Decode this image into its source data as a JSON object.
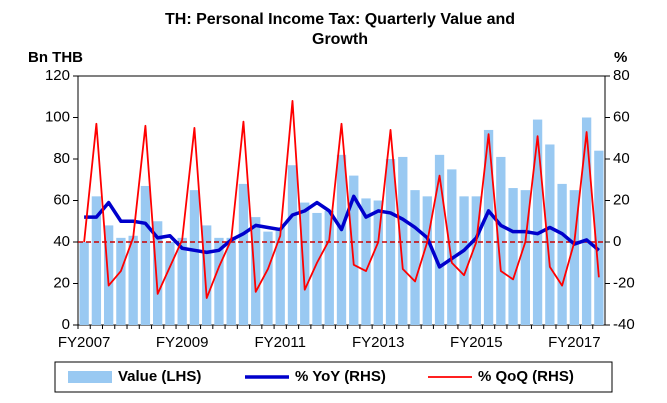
{
  "chart_data": {
    "type": "bar",
    "title": "TH: Personal Income Tax: Quarterly Value and Growth",
    "y_label": "Bn THB",
    "y2_label": "%",
    "categories": [
      "FY2007",
      null,
      null,
      null,
      null,
      null,
      null,
      null,
      "FY2009",
      null,
      null,
      null,
      null,
      null,
      null,
      null,
      "FY2011",
      null,
      null,
      null,
      null,
      null,
      null,
      null,
      "FY2013",
      null,
      null,
      null,
      null,
      null,
      null,
      null,
      "FY2015",
      null,
      null,
      null,
      null,
      null,
      null,
      null,
      "FY2017",
      null,
      null
    ],
    "series": [
      {
        "name": "Value (LHS)",
        "type": "bar",
        "axis": "y",
        "color": "#99c9f2",
        "values": [
          40,
          62,
          48,
          42,
          43,
          67,
          50,
          40,
          42,
          65,
          48,
          42,
          42,
          68,
          52,
          45,
          47,
          77,
          59,
          54,
          55,
          82,
          72,
          61,
          60,
          80,
          81,
          65,
          62,
          82,
          75,
          62,
          62,
          94,
          81,
          66,
          65,
          99,
          87,
          68,
          65,
          100,
          84
        ]
      },
      {
        "name": "% YoY (RHS)",
        "type": "line",
        "axis": "y2",
        "color": "#0000cc",
        "values": [
          12,
          12,
          19,
          10,
          10,
          9,
          2,
          3,
          -3,
          -4,
          -5,
          -4,
          1,
          4,
          8,
          7,
          6,
          13,
          15,
          19,
          15,
          6,
          22,
          12,
          15,
          14,
          11,
          7,
          2,
          -12,
          -8,
          -4,
          2,
          15,
          8,
          5,
          5,
          4,
          7,
          4,
          -1,
          1,
          -4
        ]
      },
      {
        "name": "% QoQ (RHS)",
        "type": "line",
        "axis": "y2",
        "color": "#ff0000",
        "values": [
          0,
          57,
          -21,
          -14,
          2,
          56,
          -25,
          -12,
          1,
          55,
          -27,
          -12,
          1,
          58,
          -24,
          -13,
          3,
          68,
          -23,
          -10,
          1,
          57,
          -11,
          -14,
          0,
          54,
          -13,
          -19,
          0,
          32,
          -10,
          -16,
          0,
          52,
          -14,
          -18,
          0,
          51,
          -12,
          -21,
          0,
          53,
          -17
        ]
      }
    ],
    "ylim": [
      0,
      120
    ],
    "yticks": [
      0,
      20,
      40,
      60,
      80,
      100,
      120
    ],
    "y2lim": [
      -40,
      80
    ],
    "y2ticks": [
      -40,
      -20,
      0,
      20,
      40,
      60,
      80
    ],
    "zero_line": {
      "axis": "y2",
      "color": "#cc0000"
    },
    "legend": "bottom"
  }
}
